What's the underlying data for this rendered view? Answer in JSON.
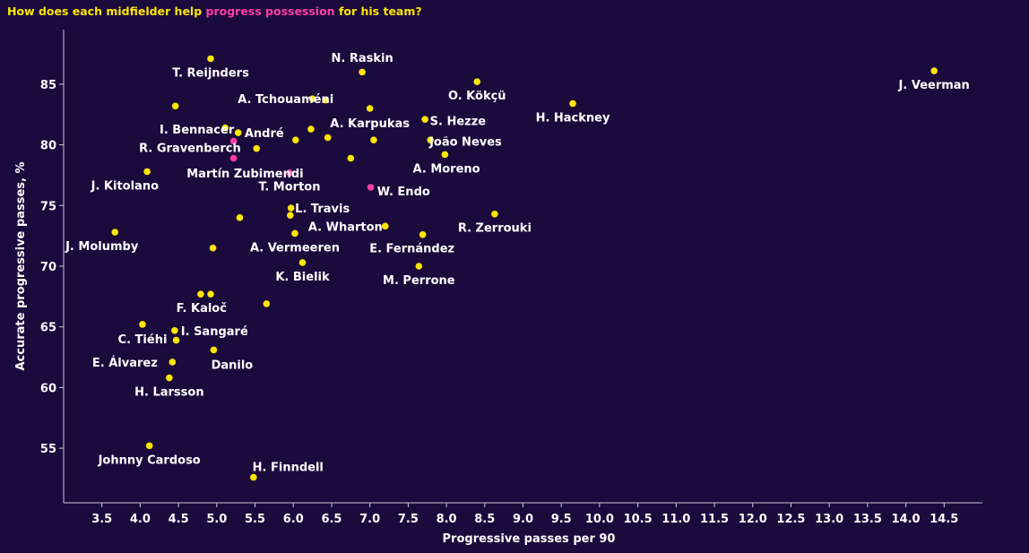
{
  "colors": {
    "background": "#1b0a3c",
    "title": "#ffe600",
    "highlight": "#ff3fa4",
    "point_default": "#ffe600",
    "point_highlight": "#ff3fa4",
    "text": "#ffffff"
  },
  "chart_data": {
    "type": "scatter",
    "title_parts": [
      {
        "text": "How does each midfielder help ",
        "color": "#ffe600"
      },
      {
        "text": "progress possession",
        "color": "#ff3fa4"
      },
      {
        "text": " for his team?",
        "color": "#ffe600"
      }
    ],
    "xlabel": "Progressive passes per 90",
    "ylabel": "Accurate progressive passes, %",
    "xlim": [
      3.0,
      15.0
    ],
    "ylim": [
      50.5,
      89.5
    ],
    "xticks": [
      "3.5",
      "4.0",
      "4.5",
      "5.0",
      "5.5",
      "6.0",
      "6.5",
      "7.0",
      "7.5",
      "8.0",
      "8.5",
      "9.0",
      "9.5",
      "10.0",
      "10.5",
      "11.0",
      "11.5",
      "12.0",
      "12.5",
      "13.0",
      "13.5",
      "14.0",
      "14.5"
    ],
    "yticks": [
      "55",
      "60",
      "65",
      "70",
      "75",
      "80",
      "85"
    ],
    "grid": false,
    "points": [
      {
        "x": 4.92,
        "y": 87.1,
        "highlight": false
      },
      {
        "x": 6.9,
        "y": 86.0,
        "highlight": false
      },
      {
        "x": 14.37,
        "y": 86.1,
        "highlight": false
      },
      {
        "x": 8.4,
        "y": 85.2,
        "highlight": false
      },
      {
        "x": 9.65,
        "y": 83.4,
        "highlight": false
      },
      {
        "x": 4.46,
        "y": 83.2,
        "highlight": false
      },
      {
        "x": 6.25,
        "y": 83.8,
        "highlight": false
      },
      {
        "x": 6.42,
        "y": 83.7,
        "highlight": false
      },
      {
        "x": 7.0,
        "y": 83.0,
        "highlight": false
      },
      {
        "x": 7.72,
        "y": 82.1,
        "highlight": false
      },
      {
        "x": 5.11,
        "y": 81.4,
        "highlight": false
      },
      {
        "x": 5.28,
        "y": 81.0,
        "highlight": false
      },
      {
        "x": 6.23,
        "y": 81.3,
        "highlight": false
      },
      {
        "x": 6.45,
        "y": 80.6,
        "highlight": false
      },
      {
        "x": 6.03,
        "y": 80.4,
        "highlight": false
      },
      {
        "x": 7.05,
        "y": 80.4,
        "highlight": false
      },
      {
        "x": 7.79,
        "y": 80.4,
        "highlight": false
      },
      {
        "x": 5.22,
        "y": 80.3,
        "highlight": true
      },
      {
        "x": 5.52,
        "y": 79.7,
        "highlight": false
      },
      {
        "x": 7.98,
        "y": 79.2,
        "highlight": false
      },
      {
        "x": 5.22,
        "y": 78.9,
        "highlight": true
      },
      {
        "x": 6.75,
        "y": 78.9,
        "highlight": false
      },
      {
        "x": 4.09,
        "y": 77.8,
        "highlight": false
      },
      {
        "x": 5.95,
        "y": 77.7,
        "highlight": true
      },
      {
        "x": 7.01,
        "y": 76.5,
        "highlight": true
      },
      {
        "x": 5.97,
        "y": 74.8,
        "highlight": false
      },
      {
        "x": 8.63,
        "y": 74.3,
        "highlight": false
      },
      {
        "x": 5.96,
        "y": 74.2,
        "highlight": false
      },
      {
        "x": 5.3,
        "y": 74.0,
        "highlight": false
      },
      {
        "x": 7.2,
        "y": 73.3,
        "highlight": false
      },
      {
        "x": 3.67,
        "y": 72.8,
        "highlight": false
      },
      {
        "x": 6.02,
        "y": 72.7,
        "highlight": false
      },
      {
        "x": 7.69,
        "y": 72.6,
        "highlight": false
      },
      {
        "x": 4.95,
        "y": 71.5,
        "highlight": false
      },
      {
        "x": 6.12,
        "y": 70.3,
        "highlight": false
      },
      {
        "x": 7.64,
        "y": 70.0,
        "highlight": false
      },
      {
        "x": 4.79,
        "y": 67.7,
        "highlight": false
      },
      {
        "x": 4.92,
        "y": 67.7,
        "highlight": false
      },
      {
        "x": 5.65,
        "y": 66.9,
        "highlight": false
      },
      {
        "x": 4.03,
        "y": 65.2,
        "highlight": false
      },
      {
        "x": 4.45,
        "y": 64.7,
        "highlight": false
      },
      {
        "x": 4.47,
        "y": 63.9,
        "highlight": false
      },
      {
        "x": 4.96,
        "y": 63.1,
        "highlight": false
      },
      {
        "x": 4.42,
        "y": 62.1,
        "highlight": false
      },
      {
        "x": 4.38,
        "y": 60.8,
        "highlight": false
      },
      {
        "x": 4.12,
        "y": 55.2,
        "highlight": false
      },
      {
        "x": 5.48,
        "y": 52.6,
        "highlight": false
      }
    ],
    "annotations": [
      {
        "text": "T. Reijnders",
        "x": 4.92,
        "y": 86.0
      },
      {
        "text": "N. Raskin",
        "x": 6.9,
        "y": 87.2
      },
      {
        "text": "J. Veerman",
        "x": 14.37,
        "y": 85.0
      },
      {
        "text": "O. Kökçü",
        "x": 8.4,
        "y": 84.1
      },
      {
        "text": "A. Tchouaméni",
        "x": 5.9,
        "y": 83.8
      },
      {
        "text": "H. Hackney",
        "x": 9.65,
        "y": 82.3
      },
      {
        "text": "A. Karpukas",
        "x": 7.0,
        "y": 81.8
      },
      {
        "text": "S. Hezze",
        "x": 8.15,
        "y": 82.0
      },
      {
        "text": "I. Bennacer",
        "x": 4.74,
        "y": 81.3
      },
      {
        "text": "André",
        "x": 5.62,
        "y": 81.0
      },
      {
        "text": "João Neves",
        "x": 8.25,
        "y": 80.3
      },
      {
        "text": "R. Gravenberch",
        "x": 4.65,
        "y": 79.8
      },
      {
        "text": "A. Moreno",
        "x": 8.0,
        "y": 78.1
      },
      {
        "text": "Martín Zubimendi",
        "x": 5.37,
        "y": 77.7
      },
      {
        "text": "J. Kitolano",
        "x": 3.8,
        "y": 76.7
      },
      {
        "text": "T. Morton",
        "x": 5.95,
        "y": 76.6
      },
      {
        "text": "W. Endo",
        "x": 7.44,
        "y": 76.2
      },
      {
        "text": "L. Travis",
        "x": 6.38,
        "y": 74.8
      },
      {
        "text": "A. Wharton",
        "x": 6.68,
        "y": 73.3
      },
      {
        "text": "R. Zerrouki",
        "x": 8.63,
        "y": 73.2
      },
      {
        "text": "J. Molumby",
        "x": 3.5,
        "y": 71.7
      },
      {
        "text": "A. Vermeeren",
        "x": 6.02,
        "y": 71.6
      },
      {
        "text": "E. Fernández",
        "x": 7.55,
        "y": 71.5
      },
      {
        "text": "K. Bielik",
        "x": 6.12,
        "y": 69.2
      },
      {
        "text": "M. Perrone",
        "x": 7.64,
        "y": 68.9
      },
      {
        "text": "F. Kaloč",
        "x": 4.8,
        "y": 66.6
      },
      {
        "text": "I. Sangaré",
        "x": 4.97,
        "y": 64.7
      },
      {
        "text": "C. Tiéhi",
        "x": 4.03,
        "y": 64.0
      },
      {
        "text": "E. Álvarez",
        "x": 3.8,
        "y": 62.1
      },
      {
        "text": "Danilo",
        "x": 5.2,
        "y": 61.9
      },
      {
        "text": "H. Larsson",
        "x": 4.38,
        "y": 59.7
      },
      {
        "text": "Johnny Cardoso",
        "x": 4.12,
        "y": 54.1
      },
      {
        "text": "H. Finndell",
        "x": 5.93,
        "y": 53.5
      }
    ]
  }
}
